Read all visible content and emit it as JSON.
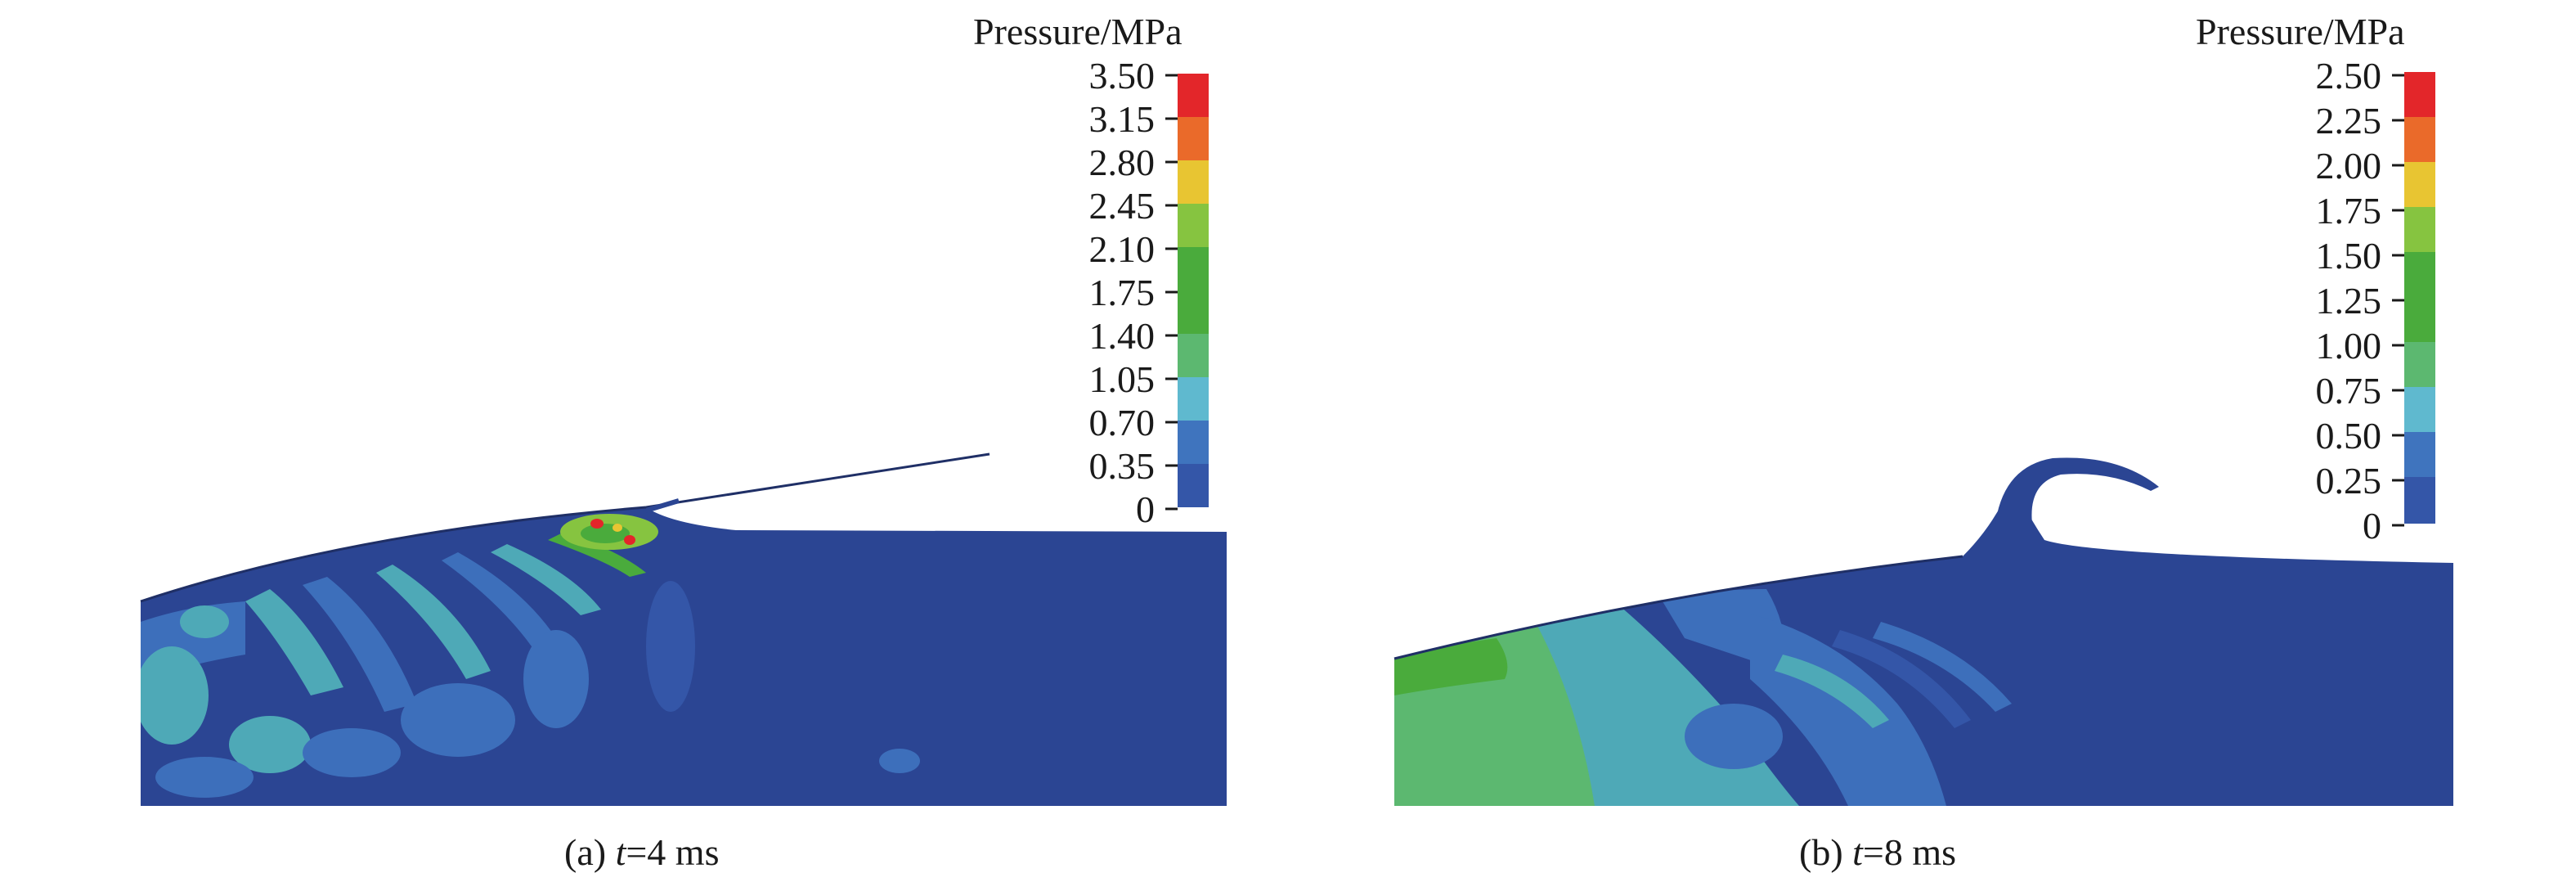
{
  "panels": [
    {
      "id": "a",
      "legend": {
        "title": "Pressure/MPa",
        "ticks": [
          "3.50",
          "3.15",
          "2.80",
          "2.45",
          "2.10",
          "1.75",
          "1.40",
          "1.05",
          "0.70",
          "0.35",
          "0"
        ],
        "colors": [
          "#e3262a",
          "#ea6a2a",
          "#e8c532",
          "#86c440",
          "#4aab3c",
          "#5cb870",
          "#5fb9cf",
          "#3f74be",
          "#3456a8",
          "#2d4595"
        ]
      },
      "caption": {
        "label": "(a) ",
        "var": "t",
        "value": "=4 ms"
      }
    },
    {
      "id": "b",
      "legend": {
        "title": "Pressure/MPa",
        "ticks": [
          "2.50",
          "2.25",
          "2.00",
          "1.75",
          "1.50",
          "1.25",
          "1.00",
          "0.75",
          "0.50",
          "0.25",
          "0"
        ],
        "colors": [
          "#e3262a",
          "#ea6a2a",
          "#e8c532",
          "#86c440",
          "#4aab3c",
          "#5cb870",
          "#5fb9cf",
          "#3f74be",
          "#3456a8",
          "#2d4595"
        ]
      },
      "caption": {
        "label": "(b) ",
        "var": "t",
        "value": "=8 ms"
      }
    }
  ],
  "fluid_color": "#2b4593"
}
